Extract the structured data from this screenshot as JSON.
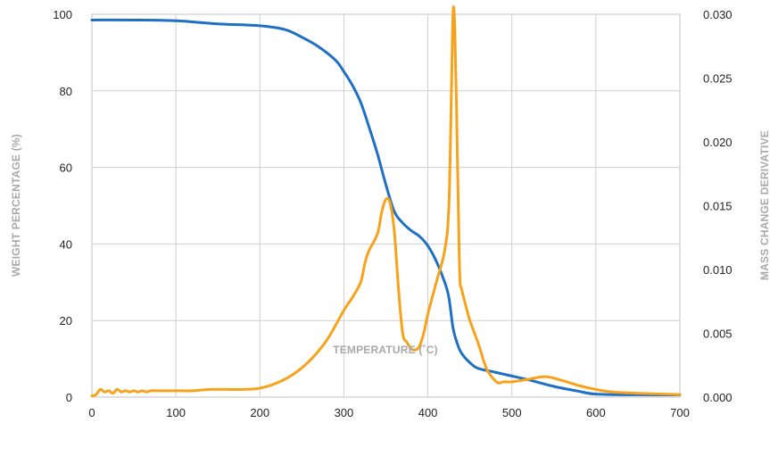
{
  "chart_data": {
    "type": "line",
    "xlabel": "TEMPERATURE (˚C)",
    "ylabel_left": "WEIGHT PERCENTAGE (%)",
    "ylabel_right": "MASS CHANGE DERIVATIVE",
    "xlim": [
      0,
      700
    ],
    "ylim_left": [
      0,
      100
    ],
    "ylim_right": [
      0,
      0.03
    ],
    "x_ticks": [
      "0",
      "100",
      "200",
      "300",
      "400",
      "500",
      "600",
      "700"
    ],
    "y_left_ticks": [
      "0",
      "20",
      "40",
      "60",
      "80",
      "100"
    ],
    "y_right_ticks": [
      "0.000",
      "0.005",
      "0.010",
      "0.015",
      "0.020",
      "0.025",
      "0.030"
    ],
    "grid": true,
    "colors": {
      "weight": "#1f6fc5",
      "derivative": "#f7a21b"
    },
    "series": [
      {
        "axis": "left",
        "x": [
          0,
          50,
          100,
          150,
          200,
          230,
          250,
          270,
          290,
          300,
          310,
          320,
          330,
          340,
          350,
          360,
          370,
          380,
          390,
          400,
          410,
          420,
          425,
          430,
          435,
          440,
          450,
          460,
          480,
          500,
          520,
          550,
          580,
          600,
          650,
          700
        ],
        "y": [
          98.5,
          98.5,
          98.3,
          97.5,
          97.0,
          96.0,
          94.0,
          91.5,
          88.0,
          85.0,
          81.5,
          77.0,
          70.5,
          63.5,
          55.5,
          48.5,
          45.5,
          43.5,
          42.0,
          39.5,
          35.5,
          30.0,
          26.0,
          18.0,
          14.0,
          11.5,
          9.0,
          7.5,
          6.5,
          5.5,
          4.5,
          2.8,
          1.5,
          0.8,
          0.6,
          0.6
        ]
      },
      {
        "axis": "right",
        "x": [
          0,
          5,
          10,
          15,
          20,
          25,
          30,
          35,
          40,
          45,
          50,
          55,
          60,
          65,
          70,
          75,
          80,
          90,
          100,
          120,
          140,
          160,
          180,
          200,
          220,
          240,
          260,
          280,
          300,
          310,
          320,
          325,
          330,
          340,
          345,
          350,
          355,
          360,
          365,
          370,
          375,
          380,
          385,
          390,
          395,
          400,
          410,
          420,
          425,
          428,
          430,
          432,
          434,
          436,
          438,
          440,
          445,
          450,
          460,
          470,
          480,
          485,
          490,
          500,
          520,
          540,
          560,
          580,
          600,
          620,
          650,
          700
        ],
        "y": [
          0.0001,
          0.0002,
          0.0006,
          0.0004,
          0.0005,
          0.0003,
          0.0006,
          0.0004,
          0.0005,
          0.0004,
          0.0005,
          0.0004,
          0.0005,
          0.0004,
          0.0005,
          0.0005,
          0.0005,
          0.0005,
          0.0005,
          0.0005,
          0.0006,
          0.0006,
          0.0006,
          0.0007,
          0.0011,
          0.0018,
          0.0029,
          0.0045,
          0.0068,
          0.0078,
          0.009,
          0.0105,
          0.0115,
          0.0128,
          0.0145,
          0.0155,
          0.0152,
          0.013,
          0.0085,
          0.005,
          0.0043,
          0.0038,
          0.0037,
          0.004,
          0.005,
          0.0065,
          0.009,
          0.0115,
          0.015,
          0.024,
          0.0302,
          0.029,
          0.023,
          0.0158,
          0.0095,
          0.0085,
          0.0072,
          0.006,
          0.0042,
          0.0022,
          0.0013,
          0.0011,
          0.0012,
          0.0012,
          0.0014,
          0.0016,
          0.0013,
          0.0009,
          0.0006,
          0.0004,
          0.0003,
          0.0002
        ]
      }
    ]
  }
}
